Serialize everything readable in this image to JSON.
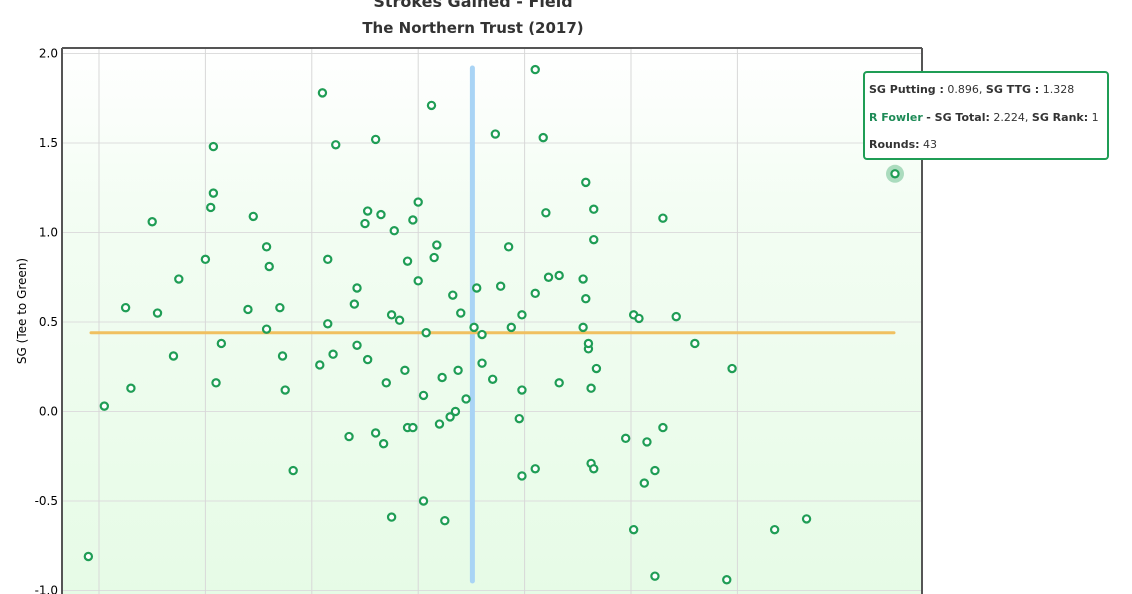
{
  "chart_data": {
    "type": "scatter",
    "title": "Strokes Gained - Field",
    "subtitle": "The Northern Trust (2017)",
    "xlabel": "",
    "ylabel": "SG (Tee to Green)",
    "ylim": [
      -1.0,
      2.0
    ],
    "xlim": [
      -0.55,
      0.9
    ],
    "yticks": [
      "2.0",
      "1.5",
      "1.0",
      "0.5",
      "0.0",
      "-0.5",
      "-1.0"
    ],
    "ytick_values": [
      2.0,
      1.5,
      1.0,
      0.5,
      0.0,
      -0.5,
      -1.0
    ],
    "xgrid": [
      -0.5,
      -0.3,
      -0.1,
      0.1,
      0.3,
      0.5,
      0.7
    ],
    "grid": true,
    "mean_x": 0.2,
    "mean_y": 0.44,
    "colors": {
      "point": "#1f9d55",
      "mean_x_line": "#a9d4f5",
      "mean_y_line": "#f0c060",
      "background_top": "#ffffff",
      "background_bottom": "#e8fbe8"
    },
    "points": [
      [
        -0.52,
        -0.81
      ],
      [
        -0.49,
        0.03
      ],
      [
        -0.45,
        0.58
      ],
      [
        -0.44,
        0.13
      ],
      [
        -0.4,
        1.06
      ],
      [
        -0.39,
        0.55
      ],
      [
        -0.36,
        0.31
      ],
      [
        -0.35,
        0.74
      ],
      [
        -0.3,
        0.85
      ],
      [
        -0.29,
        1.14
      ],
      [
        -0.285,
        1.48
      ],
      [
        -0.285,
        1.22
      ],
      [
        -0.28,
        0.16
      ],
      [
        -0.27,
        0.38
      ],
      [
        -0.22,
        0.57
      ],
      [
        -0.21,
        1.09
      ],
      [
        -0.185,
        0.92
      ],
      [
        -0.185,
        0.46
      ],
      [
        -0.18,
        0.81
      ],
      [
        -0.16,
        0.58
      ],
      [
        -0.155,
        0.31
      ],
      [
        -0.15,
        0.12
      ],
      [
        -0.135,
        -0.33
      ],
      [
        -0.085,
        0.26
      ],
      [
        -0.08,
        1.78
      ],
      [
        -0.07,
        0.49
      ],
      [
        -0.07,
        0.85
      ],
      [
        -0.06,
        0.32
      ],
      [
        -0.055,
        1.49
      ],
      [
        -0.03,
        -0.14
      ],
      [
        -0.02,
        0.6
      ],
      [
        -0.015,
        0.69
      ],
      [
        -0.015,
        0.37
      ],
      [
        0.0,
        1.05
      ],
      [
        0.005,
        1.12
      ],
      [
        0.005,
        0.29
      ],
      [
        0.02,
        1.52
      ],
      [
        0.02,
        -0.12
      ],
      [
        0.03,
        1.1
      ],
      [
        0.035,
        -0.18
      ],
      [
        0.04,
        0.16
      ],
      [
        0.05,
        -0.59
      ],
      [
        0.05,
        0.54
      ],
      [
        0.055,
        1.01
      ],
      [
        0.065,
        0.51
      ],
      [
        0.075,
        0.23
      ],
      [
        0.08,
        0.84
      ],
      [
        0.08,
        -0.09
      ],
      [
        0.09,
        -0.09
      ],
      [
        0.09,
        1.07
      ],
      [
        0.1,
        0.73
      ],
      [
        0.1,
        1.17
      ],
      [
        0.11,
        -0.5
      ],
      [
        0.11,
        0.09
      ],
      [
        0.115,
        0.44
      ],
      [
        0.125,
        1.71
      ],
      [
        0.13,
        0.86
      ],
      [
        0.135,
        0.93
      ],
      [
        0.14,
        -0.07
      ],
      [
        0.145,
        0.19
      ],
      [
        0.15,
        -0.61
      ],
      [
        0.16,
        -0.03
      ],
      [
        0.165,
        0.65
      ],
      [
        0.17,
        0.0
      ],
      [
        0.175,
        0.23
      ],
      [
        0.18,
        0.55
      ],
      [
        0.19,
        0.07
      ],
      [
        0.205,
        0.47
      ],
      [
        0.21,
        0.69
      ],
      [
        0.22,
        0.27
      ],
      [
        0.22,
        0.43
      ],
      [
        0.24,
        0.18
      ],
      [
        0.245,
        1.55
      ],
      [
        0.255,
        0.7
      ],
      [
        0.27,
        0.92
      ],
      [
        0.275,
        0.47
      ],
      [
        0.29,
        -0.04
      ],
      [
        0.295,
        0.54
      ],
      [
        0.295,
        0.12
      ],
      [
        0.295,
        -0.36
      ],
      [
        0.32,
        1.91
      ],
      [
        0.32,
        0.66
      ],
      [
        0.32,
        -0.32
      ],
      [
        0.335,
        1.53
      ],
      [
        0.34,
        1.11
      ],
      [
        0.345,
        0.75
      ],
      [
        0.365,
        0.76
      ],
      [
        0.365,
        0.16
      ],
      [
        0.41,
        0.74
      ],
      [
        0.41,
        0.47
      ],
      [
        0.415,
        1.28
      ],
      [
        0.415,
        0.63
      ],
      [
        0.42,
        0.35
      ],
      [
        0.42,
        0.38
      ],
      [
        0.425,
        -0.29
      ],
      [
        0.425,
        0.13
      ],
      [
        0.43,
        1.13
      ],
      [
        0.43,
        0.96
      ],
      [
        0.43,
        -0.32
      ],
      [
        0.435,
        0.24
      ],
      [
        0.49,
        -0.15
      ],
      [
        0.505,
        0.54
      ],
      [
        0.505,
        -0.66
      ],
      [
        0.515,
        0.52
      ],
      [
        0.525,
        -0.4
      ],
      [
        0.53,
        -0.17
      ],
      [
        0.545,
        -0.33
      ],
      [
        0.545,
        -0.92
      ],
      [
        0.56,
        1.08
      ],
      [
        0.56,
        -0.09
      ],
      [
        0.585,
        0.53
      ],
      [
        0.62,
        0.38
      ],
      [
        0.68,
        -0.94
      ],
      [
        0.69,
        0.24
      ],
      [
        0.77,
        -0.66
      ],
      [
        0.83,
        -0.6
      ]
    ],
    "highlight_point": [
      0.896,
      1.328
    ]
  },
  "tooltip": {
    "putting_label": "SG Putting :",
    "putting_value": "0.896",
    "ttg_label": "SG TTG :",
    "ttg_value": "1.328",
    "player": "R Fowler",
    "total_label": "- SG Total:",
    "total_value": "2.224",
    "rank_label": "SG Rank:",
    "rank_value": "1",
    "rounds_label": "Rounds:",
    "rounds_value": "43"
  }
}
